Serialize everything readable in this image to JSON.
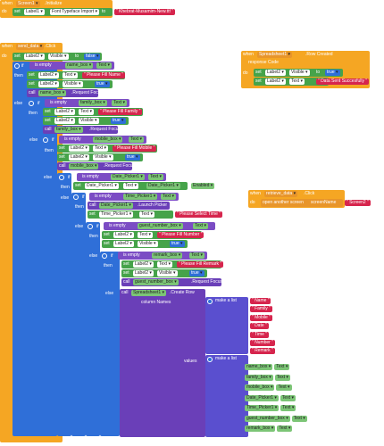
{
  "colors": {
    "event": "#f5a623",
    "set": "#46a34a",
    "text": "#7cc576",
    "call": "#6a3fb8",
    "logic": "#2f6fd8",
    "string": "#d6254d",
    "list": "#5a4fcf",
    "control": "#e8952a"
  },
  "b1": {
    "when": "when",
    "comp": "Screen1",
    "evt": ".Initialize",
    "do": "do",
    "set": "set",
    "target": "Label1",
    "prop": "Font Typeface Import",
    "to": "to",
    "value": "Khebrat-Musamim-New.ttf"
  },
  "b2": {
    "when": "when",
    "comp": "send_data",
    "evt": ".Click",
    "do": "do",
    "r1": {
      "set": "set",
      "target": "Label2",
      "prop": "Visible",
      "to": "to",
      "value": "false"
    },
    "if": "if",
    "then": "then",
    "else": "else",
    "s1": {
      "cond": "is empty",
      "box": "name_box",
      "prop": "Text",
      "set1": {
        "target": "Label2",
        "prop": "Text",
        "value": "Please Fill Name"
      },
      "set2": {
        "target": "Label2",
        "prop": "Visible",
        "value": "true"
      },
      "call": "call",
      "focus": "name_box",
      "focus_m": ".Request Focus"
    },
    "s2": {
      "cond": "is empty",
      "box": "family_box",
      "prop": "Text",
      "set1": {
        "target": "Label2",
        "prop": "Text",
        "value": "Please Fill Family"
      },
      "set2": {
        "target": "Label2",
        "prop": "Visible",
        "value": "true"
      },
      "focus": "family_box",
      "focus_m": ".Request Focus"
    },
    "s3": {
      "cond": "is empty",
      "box": "mobile_box",
      "prop": "Text",
      "set1": {
        "target": "Label2",
        "prop": "Text",
        "value": "Please Fill Mobile"
      },
      "set2": {
        "target": "Label2",
        "prop": "Visible",
        "value": "true"
      },
      "focus": "mobile_box",
      "focus_m": ".Request Focus"
    },
    "s4": {
      "cond": "is empty",
      "box": "Date_Picker1",
      "prop": "Text",
      "set1": {
        "target": "Date_Picker1",
        "prop": "Text",
        "value_comp": "Date_Picker1",
        "value_prop": "Enabled"
      }
    },
    "s5": {
      "cond": "is empty",
      "box": "Time_Picker1",
      "prop": "Text",
      "call": "Date_Picker1",
      "call_m": ".Launch Picker",
      "set1": {
        "target": "Time_Picker1",
        "prop": "Text",
        "value": "Please Select Time"
      }
    },
    "s6": {
      "cond": "is empty",
      "box": "guest_number_box",
      "prop": "Text",
      "set1": {
        "target": "Label2",
        "prop": "Text",
        "value": "Please Fill Number"
      },
      "set2": {
        "target": "Label2",
        "prop": "Visible",
        "value": "true"
      }
    },
    "s7": {
      "cond": "is empty",
      "box": "remark_box",
      "prop": "Text",
      "set1": {
        "target": "Label2",
        "prop": "Text",
        "value": "Please Fill Remark"
      },
      "set2": {
        "target": "Label2",
        "prop": "Visible",
        "value": "true"
      },
      "focus": "guest_number_box",
      "focus_m": ".Request Focus"
    },
    "create": {
      "call": "call",
      "comp": "Spreadsheet1",
      "method": ".Create Row",
      "col_label": "column Names",
      "vals_label": "values",
      "make": "make a list",
      "names": [
        "Name",
        "Family",
        "Mobile",
        "Date",
        "Time",
        "Number",
        "Remark"
      ],
      "values": [
        [
          "name_box",
          "Text"
        ],
        [
          "family_box",
          "Text"
        ],
        [
          "mobile_box",
          "Text"
        ],
        [
          "Date_Picker1",
          "Text"
        ],
        [
          "Time_Picker1",
          "Text"
        ],
        [
          "guest_number_box",
          "Text"
        ],
        [
          "remark_box",
          "Text"
        ]
      ]
    }
  },
  "b3": {
    "when": "when",
    "comp": "Spreadsheet1",
    "evt": ".Row Created",
    "param": "response Code",
    "do": "do",
    "r1": {
      "set": "set",
      "target": "Label2",
      "prop": "Visible",
      "to": "to",
      "value": "true"
    },
    "r2": {
      "set": "set",
      "target": "Label2",
      "prop": "Text",
      "to": "to",
      "value": "Data Sent Succesfully"
    }
  },
  "b4": {
    "when": "when",
    "comp": "retrieve_data",
    "evt": ".Click",
    "do": "do",
    "open": "open another screen",
    "sn": "screenName",
    "value": "Screen2"
  }
}
